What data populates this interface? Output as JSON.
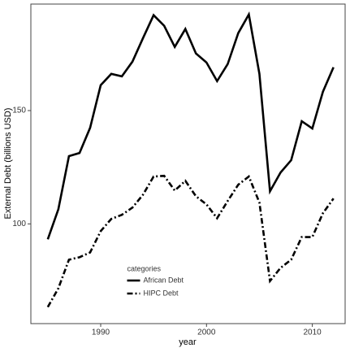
{
  "chart_data": {
    "type": "line",
    "x_label": "year",
    "y_label": "External Debt (billions USD)",
    "x": [
      1985,
      1986,
      1987,
      1988,
      1989,
      1990,
      1991,
      1992,
      1993,
      1994,
      1995,
      1996,
      1997,
      1998,
      1999,
      2000,
      2001,
      2002,
      2003,
      2004,
      2005,
      2006,
      2007,
      2008,
      2009,
      2010,
      2011,
      2012
    ],
    "series": [
      {
        "name": "African Debt",
        "color": "#000000",
        "linestyle": "solid",
        "values": [
          93.2,
          106.5,
          129.9,
          131.3,
          142.4,
          161.2,
          166.2,
          165.1,
          171.6,
          182.0,
          192.1,
          187.4,
          178.1,
          186.0,
          175.2,
          171.2,
          163.0,
          170.5,
          184.2,
          192.4,
          166.2,
          114.4,
          122.7,
          128.1,
          145.3,
          142.1,
          158.3,
          169.1
        ]
      },
      {
        "name": "HIPC Debt",
        "color": "#000000",
        "linestyle": "dashdot",
        "values": [
          63.3,
          71.6,
          84.2,
          85.3,
          87.4,
          96.8,
          102.2,
          104.0,
          107.2,
          112.9,
          120.9,
          121.2,
          114.7,
          119.0,
          112.2,
          108.6,
          102.5,
          110.1,
          117.3,
          120.9,
          109.4,
          74.8,
          80.6,
          84.2,
          94.2,
          94.2,
          104.7,
          111.2
        ]
      }
    ],
    "xlim": [
      1983.4,
      2013.1
    ],
    "xticks": [
      1990,
      2000,
      2010
    ],
    "ylim": [
      56,
      197
    ],
    "yticks": [
      100,
      150
    ],
    "grid": false,
    "legend_title": "categories",
    "legend_position": "lower center"
  }
}
